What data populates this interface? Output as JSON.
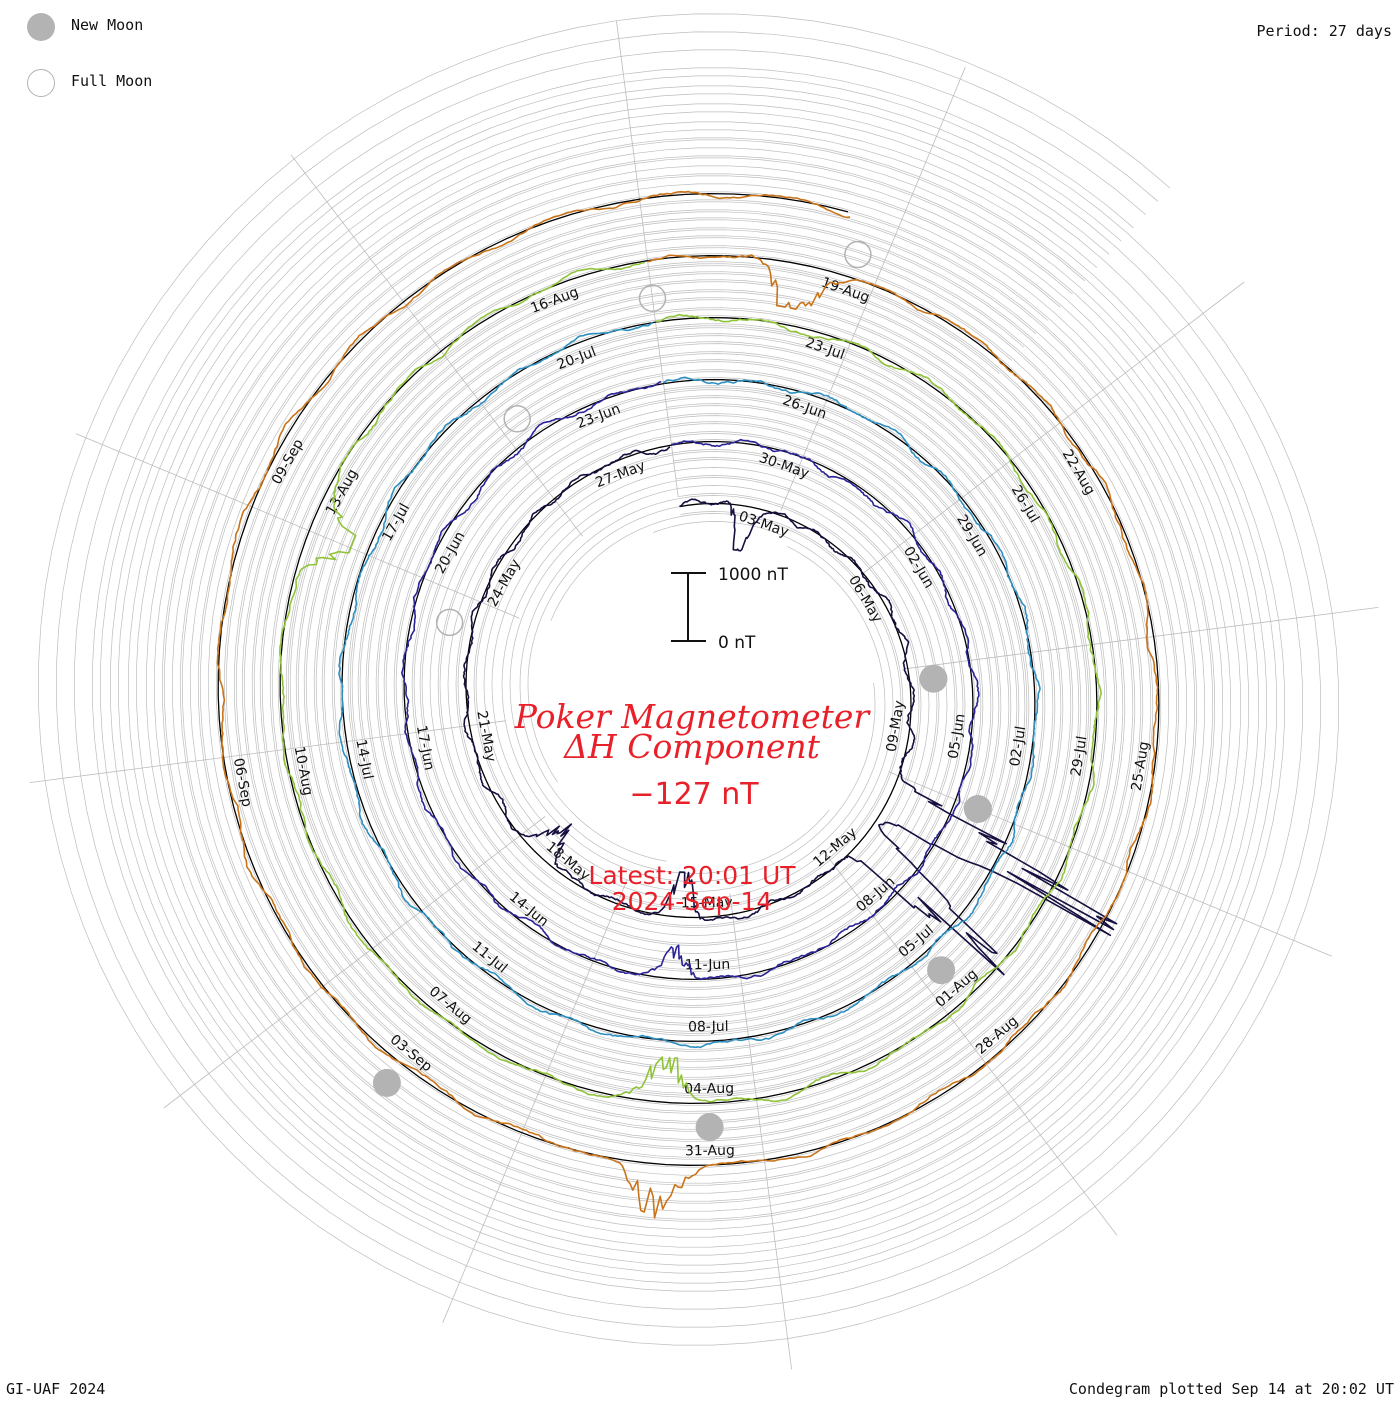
{
  "legend": {
    "new_moon_label": "New Moon",
    "full_moon_label": "Full Moon"
  },
  "period_label": "Period: 27 days",
  "footer": {
    "credit": "GI-UAF 2024",
    "plotted": "Condegram plotted Sep 14 at 20:02 UT"
  },
  "chart_data": {
    "type": "line",
    "title": "Poker Magnetometer",
    "subtitle": "ΔH Component",
    "latest_value": "−127 nT",
    "latest_time": "Latest: 20:01 UT",
    "latest_date": "2024-Sep-14",
    "scale_top_label": "1000 nT",
    "scale_bottom_label": "0 nT",
    "period_days": 27,
    "start_date": "2024-05-01",
    "end_date": "2024-09-14",
    "latest_delta_h_nT": -127,
    "grid": true,
    "colors": {
      "title": "#e8202a",
      "grid": "#bdbdbd",
      "baseline": "#000000",
      "new_moon": "#b3b3b3",
      "full_moon": "#b3b3b3"
    },
    "series": [
      {
        "rotation": 1,
        "start": "2024-05-01",
        "end": "2024-05-27",
        "color": "#151040"
      },
      {
        "rotation": 2,
        "start": "2024-05-28",
        "end": "2024-06-23",
        "color": "#2b2496"
      },
      {
        "rotation": 3,
        "start": "2024-06-24",
        "end": "2024-07-20",
        "color": "#2e8fc0"
      },
      {
        "rotation": 4,
        "start": "2024-07-21",
        "end": "2024-08-16",
        "color": "#8fc33a"
      },
      {
        "rotation": 5,
        "start": "2024-08-17",
        "end": "2024-09-14",
        "color": "#c9741a"
      }
    ],
    "date_labels": [
      {
        "text": "03-May",
        "date": "2024-05-03"
      },
      {
        "text": "06-May",
        "date": "2024-05-06"
      },
      {
        "text": "09-May",
        "date": "2024-05-09"
      },
      {
        "text": "12-May",
        "date": "2024-05-12"
      },
      {
        "text": "15-May",
        "date": "2024-05-15"
      },
      {
        "text": "18-May",
        "date": "2024-05-18"
      },
      {
        "text": "21-May",
        "date": "2024-05-21"
      },
      {
        "text": "24-May",
        "date": "2024-05-24"
      },
      {
        "text": "27-May",
        "date": "2024-05-27"
      },
      {
        "text": "30-May",
        "date": "2024-05-30"
      },
      {
        "text": "02-Jun",
        "date": "2024-06-02"
      },
      {
        "text": "05-Jun",
        "date": "2024-06-05"
      },
      {
        "text": "08-Jun",
        "date": "2024-06-08"
      },
      {
        "text": "11-Jun",
        "date": "2024-06-11"
      },
      {
        "text": "14-Jun",
        "date": "2024-06-14"
      },
      {
        "text": "17-Jun",
        "date": "2024-06-17"
      },
      {
        "text": "20-Jun",
        "date": "2024-06-20"
      },
      {
        "text": "23-Jun",
        "date": "2024-06-23"
      },
      {
        "text": "26-Jun",
        "date": "2024-06-26"
      },
      {
        "text": "29-Jun",
        "date": "2024-06-29"
      },
      {
        "text": "02-Jul",
        "date": "2024-07-02"
      },
      {
        "text": "05-Jul",
        "date": "2024-07-05"
      },
      {
        "text": "08-Jul",
        "date": "2024-07-08"
      },
      {
        "text": "11-Jul",
        "date": "2024-07-11"
      },
      {
        "text": "14-Jul",
        "date": "2024-07-14"
      },
      {
        "text": "17-Jul",
        "date": "2024-07-17"
      },
      {
        "text": "20-Jul",
        "date": "2024-07-20"
      },
      {
        "text": "23-Jul",
        "date": "2024-07-23"
      },
      {
        "text": "26-Jul",
        "date": "2024-07-26"
      },
      {
        "text": "29-Jul",
        "date": "2024-07-29"
      },
      {
        "text": "01-Aug",
        "date": "2024-08-01"
      },
      {
        "text": "04-Aug",
        "date": "2024-08-04"
      },
      {
        "text": "07-Aug",
        "date": "2024-08-07"
      },
      {
        "text": "10-Aug",
        "date": "2024-08-10"
      },
      {
        "text": "13-Aug",
        "date": "2024-08-13"
      },
      {
        "text": "16-Aug",
        "date": "2024-08-16"
      },
      {
        "text": "19-Aug",
        "date": "2024-08-19"
      },
      {
        "text": "22-Aug",
        "date": "2024-08-22"
      },
      {
        "text": "25-Aug",
        "date": "2024-08-25"
      },
      {
        "text": "28-Aug",
        "date": "2024-08-28"
      },
      {
        "text": "31-Aug",
        "date": "2024-08-31"
      },
      {
        "text": "03-Sep",
        "date": "2024-09-03"
      },
      {
        "text": "06-Sep",
        "date": "2024-09-06"
      },
      {
        "text": "09-Sep",
        "date": "2024-09-09"
      }
    ],
    "moons": [
      {
        "phase": "new",
        "date": "2024-05-08"
      },
      {
        "phase": "full",
        "date": "2024-05-23"
      },
      {
        "phase": "new",
        "date": "2024-06-06"
      },
      {
        "phase": "full",
        "date": "2024-06-22"
      },
      {
        "phase": "new",
        "date": "2024-07-05"
      },
      {
        "phase": "full",
        "date": "2024-07-21"
      },
      {
        "phase": "new",
        "date": "2024-08-04"
      },
      {
        "phase": "full",
        "date": "2024-08-19"
      },
      {
        "phase": "new",
        "date": "2024-09-03"
      }
    ],
    "disturbance_episodes": [
      {
        "date": "2024-05-02",
        "min_nT": -800
      },
      {
        "date": "2024-05-10",
        "max_nT": 3500
      },
      {
        "date": "2024-05-11",
        "max_nT": 2200
      },
      {
        "date": "2024-05-15",
        "min_nT": -700
      },
      {
        "date": "2024-05-18",
        "min_nT": -500
      },
      {
        "date": "2024-06-11",
        "min_nT": -400
      },
      {
        "date": "2024-08-04",
        "min_nT": -700
      },
      {
        "date": "2024-08-12",
        "min_nT": -800
      },
      {
        "date": "2024-08-18",
        "min_nT": -900
      },
      {
        "date": "2024-08-31",
        "max_nT": 600
      }
    ]
  }
}
